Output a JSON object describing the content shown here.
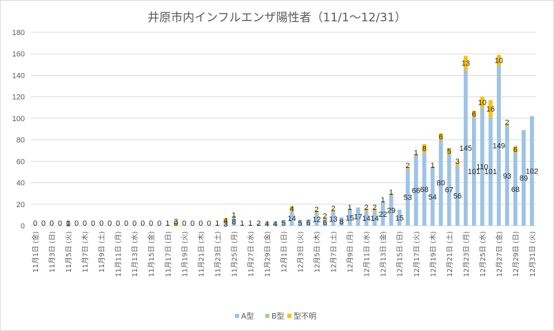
{
  "chart_data": {
    "type": "bar",
    "stacked": true,
    "title": "井原市内インフルエンザ陽性者（11/1～12/31）",
    "xlabel": "",
    "ylabel": "",
    "ylim": [
      0,
      180
    ],
    "yticks": [
      0,
      20,
      40,
      60,
      80,
      100,
      120,
      140,
      160,
      180
    ],
    "grid": true,
    "legend_position": "bottom",
    "categories": [
      "11月1日 (金)",
      "11月2日 (土)",
      "11月3日 (日)",
      "11月4日 (月)",
      "11月5日 (火)",
      "11月6日 (水)",
      "11月7日 (木)",
      "11月8日 (金)",
      "11月9日 (土)",
      "11月10日 (日)",
      "11月11日 (月)",
      "11月12日 (火)",
      "11月13日 (水)",
      "11月14日 (木)",
      "11月15日 (金)",
      "11月16日 (土)",
      "11月17日 (日)",
      "11月18日 (月)",
      "11月19日 (火)",
      "11月20日 (水)",
      "11月21日 (木)",
      "11月22日 (金)",
      "11月23日 (土)",
      "11月24日 (日)",
      "11月25日 (月)",
      "11月26日 (火)",
      "11月27日 (水)",
      "11月28日 (木)",
      "11月29日 (金)",
      "11月30日 (土)",
      "12月1日 (日)",
      "12月2日 (月)",
      "12月3日 (火)",
      "12月4日 (水)",
      "12月5日 (木)",
      "12月6日 (金)",
      "12月7日 (土)",
      "12月8日 (日)",
      "12月9日 (月)",
      "12月10日 (火)",
      "12月11日 (水)",
      "12月12日 (木)",
      "12月13日 (金)",
      "12月14日 (土)",
      "12月15日 (日)",
      "12月16日 (月)",
      "12月17日 (火)",
      "12月18日 (水)",
      "12月19日 (木)",
      "12月20日 (金)",
      "12月21日 (土)",
      "12月22日 (日)",
      "12月23日 (月)",
      "12月24日 (火)",
      "12月25日 (水)",
      "12月26日 (木)",
      "12月27日 (金)",
      "12月28日 (土)",
      "12月29日 (日)",
      "12月30日 (月)",
      "12月31日 (火)"
    ],
    "series": [
      {
        "name": "A型",
        "color": "#9dc3e6",
        "values": [
          0,
          0,
          0,
          0,
          0,
          0,
          0,
          0,
          0,
          0,
          0,
          0,
          0,
          0,
          0,
          0,
          1,
          0,
          0,
          0,
          0,
          0,
          1,
          3,
          8,
          1,
          1,
          2,
          4,
          4,
          5,
          14,
          5,
          6,
          12,
          6,
          13,
          8,
          15,
          17,
          14,
          14,
          22,
          29,
          15,
          53,
          66,
          68,
          54,
          80,
          67,
          56,
          145,
          101,
          110,
          101,
          149,
          93,
          68,
          89,
          102
        ]
      },
      {
        "name": "B型",
        "color": "#a9d18e",
        "values": [
          0,
          0,
          0,
          0,
          0,
          0,
          0,
          0,
          0,
          0,
          0,
          0,
          0,
          0,
          0,
          0,
          0,
          0,
          0,
          0,
          0,
          0,
          0,
          0,
          0,
          0,
          0,
          0,
          0,
          0,
          0,
          0,
          0,
          0,
          0,
          0,
          0,
          0,
          0,
          0,
          0,
          0,
          0,
          0,
          0,
          0,
          0,
          0,
          0,
          0,
          0,
          0,
          0,
          0,
          0,
          0,
          0,
          0,
          0,
          0,
          0
        ]
      },
      {
        "name": "型不明",
        "color": "#ffc000",
        "values": [
          0,
          0,
          0,
          0,
          1,
          0,
          0,
          0,
          0,
          0,
          0,
          0,
          0,
          0,
          0,
          0,
          0,
          3,
          0,
          0,
          0,
          0,
          0,
          4,
          1,
          0,
          0,
          0,
          0,
          0,
          0,
          4,
          0,
          0,
          2,
          2,
          2,
          0,
          1,
          0,
          2,
          2,
          1,
          1,
          0,
          2,
          1,
          8,
          1,
          6,
          5,
          3,
          13,
          6,
          10,
          16,
          10,
          2,
          6,
          0,
          0
        ]
      }
    ],
    "tick_labels": [
      "11月1日 (金)",
      "11月3日 (日)",
      "11月5日 (火)",
      "11月7日 (木)",
      "11月9日 (土)",
      "11月11日 (月)",
      "11月13日 (水)",
      "11月15日 (金)",
      "11月17日 (日)",
      "11月19日 (火)",
      "11月21日 (木)",
      "11月23日 (土)",
      "11月25日 (月)",
      "11月27日 (水)",
      "11月29日 (金)",
      "12月1日 (日)",
      "12月3日 (火)",
      "12月5日 (木)",
      "12月7日 (土)",
      "12月9日 (月)",
      "12月11日 (水)",
      "12月13日 (金)",
      "12月15日 (日)",
      "12月17日 (火)",
      "12月19日 (木)",
      "12月21日 (土)",
      "12月23日 (月)",
      "12月25日 (水)",
      "12月27日 (金)",
      "12月29日 (日)",
      "12月31日 (火)"
    ]
  }
}
